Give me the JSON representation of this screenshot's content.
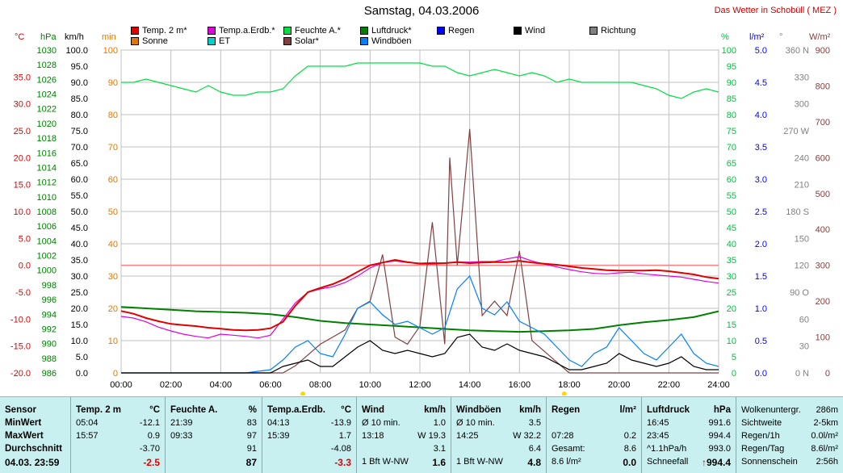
{
  "header": {
    "title": "Samstag, 04.03.2006",
    "brand": "Das Wetter in Schobüll ( MEZ )"
  },
  "legend": [
    {
      "label": "Temp. 2 m*",
      "color": "#e00000"
    },
    {
      "label": "Sonne",
      "color": "#e07800"
    },
    {
      "label": "Temp.a.Erdb.*",
      "color": "#e000e0"
    },
    {
      "label": "ET",
      "color": "#00d0d0"
    },
    {
      "label": "Feuchte A.*",
      "color": "#00e040"
    },
    {
      "label": "Solar*",
      "color": "#804040"
    },
    {
      "label": "Luftdruck*",
      "color": "#008000"
    },
    {
      "label": "Windböen",
      "color": "#0080ff"
    },
    {
      "label": "Regen",
      "color": "#0000ff"
    },
    {
      "label": "Wind",
      "color": "#000000"
    },
    {
      "label": "Richtung",
      "color": "#808080"
    }
  ],
  "axis_units": {
    "temp": "°C",
    "press": "hPa",
    "speed": "km/h",
    "min": "min",
    "pct": "%",
    "rain": "l/m²",
    "dir": "°",
    "solar": "W/m²"
  },
  "colors": {
    "temp": "#e00000",
    "press": "#008000",
    "speed": "#000000",
    "min": "#e07800",
    "pct": "#00c040",
    "rain": "#0000ff",
    "dir": "#808080",
    "solar": "#804040",
    "grid": "#c0c0c0",
    "refline": "#ff8080"
  },
  "chart_data": {
    "type": "line",
    "title": "Samstag, 04.03.2006",
    "x_ticks": [
      "00:00",
      "02:00",
      "04:00",
      "06:00",
      "08:00",
      "10:00",
      "12:00",
      "14:00",
      "16:00",
      "18:00",
      "20:00",
      "22:00",
      "24:00"
    ],
    "x_range_hours": [
      0,
      24
    ],
    "axes": {
      "temp_c": {
        "range": [
          -20,
          40
        ],
        "ticks": [
          "35.0",
          "30.0",
          "25.0",
          "20.0",
          "15.0",
          "10.0",
          "5.0",
          "0.0",
          "-5.0",
          "-10.0",
          "-15.0",
          "-20.0"
        ]
      },
      "pressure_hpa": {
        "range": [
          986,
          1030
        ],
        "ticks": [
          "1030",
          "1028",
          "1026",
          "1024",
          "1022",
          "1020",
          "1018",
          "1016",
          "1014",
          "1012",
          "1010",
          "1008",
          "1006",
          "1004",
          "1002",
          "1000",
          "998",
          "996",
          "994",
          "992",
          "990",
          "988",
          "986"
        ]
      },
      "speed_kmh": {
        "range": [
          0,
          100
        ],
        "ticks": [
          "100.0",
          "95.0",
          "90.0",
          "85.0",
          "80.0",
          "75.0",
          "70.0",
          "65.0",
          "60.0",
          "55.0",
          "50.0",
          "45.0",
          "40.0",
          "35.0",
          "30.0",
          "25.0",
          "20.0",
          "15.0",
          "10.0",
          "5.0",
          "0.0"
        ]
      },
      "minutes": {
        "range": [
          0,
          100
        ],
        "ticks": [
          "100",
          "90",
          "80",
          "70",
          "60",
          "50",
          "40",
          "30",
          "20",
          "10",
          "0"
        ]
      },
      "humidity_pct": {
        "range": [
          0,
          100
        ],
        "ticks": [
          "100",
          "95",
          "90",
          "85",
          "80",
          "75",
          "70",
          "65",
          "60",
          "55",
          "50",
          "45",
          "40",
          "35",
          "30",
          "25",
          "20",
          "15",
          "10",
          "5",
          "0"
        ]
      },
      "rain_lm2": {
        "range": [
          0,
          5
        ],
        "ticks": [
          "5.0",
          "4.5",
          "4.0",
          "3.5",
          "3.0",
          "2.5",
          "2.0",
          "1.5",
          "1.0",
          "0.5",
          "0.0"
        ]
      },
      "direction_deg": {
        "range": [
          0,
          360
        ],
        "ticks": [
          "360 N",
          "330",
          "300",
          "270 W",
          "240",
          "210",
          "180 S",
          "150",
          "120",
          "90 O",
          "60",
          "30",
          "0 N"
        ]
      },
      "solar_wm2": {
        "range": [
          0,
          900
        ],
        "ticks": [
          "900",
          "800",
          "700",
          "600",
          "500",
          "400",
          "300",
          "200",
          "100",
          "0"
        ]
      }
    },
    "series": [
      {
        "name": "Temp. 2 m*",
        "axis": "temp_c",
        "color": "#e00000",
        "x": [
          0,
          0.5,
          1,
          1.5,
          2,
          2.5,
          3,
          3.5,
          4,
          4.5,
          5,
          5.5,
          6,
          6.5,
          7,
          7.5,
          8,
          8.5,
          9,
          9.5,
          10,
          10.5,
          11,
          11.5,
          12,
          12.5,
          13,
          13.5,
          14,
          14.5,
          15,
          15.5,
          16,
          16.5,
          17,
          17.5,
          18,
          18.5,
          19,
          19.5,
          20,
          20.5,
          21,
          21.5,
          22,
          22.5,
          23,
          23.5,
          24
        ],
        "y": [
          -8.5,
          -9.0,
          -9.8,
          -10.4,
          -10.9,
          -11.1,
          -11.3,
          -11.6,
          -11.8,
          -12.0,
          -12.1,
          -12.0,
          -11.7,
          -10.5,
          -7.5,
          -5.0,
          -4.2,
          -3.5,
          -2.5,
          -1.2,
          0.0,
          0.5,
          1.0,
          0.6,
          0.3,
          0.3,
          0.4,
          0.6,
          0.4,
          0.5,
          0.6,
          0.6,
          0.8,
          0.5,
          0.3,
          0.1,
          -0.2,
          -0.5,
          -0.7,
          -0.9,
          -1.0,
          -1.0,
          -1.0,
          -0.9,
          -1.1,
          -1.4,
          -1.7,
          -2.2,
          -2.5
        ]
      },
      {
        "name": "Temp.a.Erdb.*",
        "axis": "temp_c",
        "color": "#e000e0",
        "x": [
          0,
          0.5,
          1,
          1.5,
          2,
          2.5,
          3,
          3.5,
          4,
          4.5,
          5,
          5.5,
          6,
          6.5,
          7,
          7.5,
          8,
          8.5,
          9,
          9.5,
          10,
          10.5,
          11,
          11.5,
          12,
          12.5,
          13,
          13.5,
          14,
          14.5,
          15,
          15.5,
          16,
          16.5,
          17,
          17.5,
          18,
          18.5,
          19,
          19.5,
          20,
          20.5,
          21,
          21.5,
          22,
          22.5,
          23,
          23.5,
          24
        ],
        "y": [
          -9.5,
          -9.8,
          -10.5,
          -11.5,
          -12.2,
          -12.8,
          -13.2,
          -13.5,
          -12.8,
          -13.0,
          -13.2,
          -13.5,
          -13.0,
          -10.0,
          -7.0,
          -5.0,
          -4.4,
          -4.0,
          -3.2,
          -2.0,
          -0.5,
          0.5,
          0.8,
          0.5,
          0.4,
          0.5,
          0.4,
          0.6,
          0.6,
          0.7,
          0.7,
          1.2,
          1.6,
          0.8,
          0.2,
          -0.3,
          -0.8,
          -1.2,
          -1.5,
          -1.6,
          -1.4,
          -1.3,
          -1.6,
          -1.8,
          -2.0,
          -2.2,
          -2.6,
          -3.0,
          -3.3
        ]
      },
      {
        "name": "Feuchte A.*",
        "axis": "humidity_pct",
        "color": "#00e040",
        "x": [
          0,
          0.5,
          1,
          1.5,
          2,
          2.5,
          3,
          3.5,
          4,
          4.5,
          5,
          5.5,
          6,
          6.5,
          7,
          7.5,
          8,
          8.5,
          9,
          9.5,
          10,
          10.5,
          11,
          11.5,
          12,
          12.5,
          13,
          13.5,
          14,
          14.5,
          15,
          15.5,
          16,
          16.5,
          17,
          17.5,
          18,
          18.5,
          19,
          19.5,
          20,
          20.5,
          21,
          21.5,
          22,
          22.5,
          23,
          23.5,
          24
        ],
        "y": [
          90,
          90,
          91,
          90,
          89,
          88,
          87,
          89,
          87,
          86,
          86,
          87,
          87,
          88,
          92,
          95,
          95,
          95,
          95,
          96,
          96,
          96,
          96,
          96,
          96,
          95,
          95,
          93,
          92,
          93,
          94,
          93,
          92,
          93,
          92,
          90,
          91,
          90,
          90,
          90,
          90,
          90,
          89,
          88,
          86,
          85,
          87,
          88,
          87
        ]
      },
      {
        "name": "Luftdruck*",
        "axis": "pressure_hpa",
        "color": "#008000",
        "x": [
          0,
          1,
          2,
          3,
          4,
          5,
          6,
          7,
          8,
          9,
          10,
          11,
          12,
          13,
          14,
          15,
          16,
          17,
          18,
          19,
          20,
          21,
          22,
          23,
          24
        ],
        "y": [
          995.0,
          994.8,
          994.6,
          994.4,
          994.3,
          994.2,
          994.0,
          993.6,
          993.1,
          992.8,
          992.6,
          992.4,
          992.2,
          992.0,
          991.8,
          991.7,
          991.6,
          991.7,
          991.8,
          992.0,
          992.5,
          992.9,
          993.2,
          993.6,
          994.4
        ]
      },
      {
        "name": "Windböen",
        "axis": "speed_kmh",
        "color": "#0080ff",
        "x": [
          0,
          1,
          2,
          3,
          4,
          5,
          6,
          6.5,
          7,
          7.5,
          8,
          8.5,
          9,
          9.5,
          10,
          10.5,
          11,
          11.5,
          12,
          12.5,
          13,
          13.5,
          14,
          14.5,
          15,
          15.5,
          16,
          16.5,
          17,
          17.5,
          18,
          18.5,
          19,
          19.5,
          20,
          20.5,
          21,
          21.5,
          22,
          22.5,
          23,
          23.5,
          24
        ],
        "y": [
          0,
          0,
          0,
          0,
          0,
          0,
          1,
          4,
          8,
          10,
          6,
          5,
          12,
          20,
          22,
          18,
          15,
          16,
          14,
          12,
          14,
          26,
          30,
          20,
          18,
          22,
          16,
          14,
          12,
          8,
          4,
          2,
          6,
          8,
          14,
          10,
          6,
          4,
          8,
          12,
          6,
          3,
          2
        ]
      },
      {
        "name": "Wind",
        "axis": "speed_kmh",
        "color": "#000000",
        "x": [
          0,
          1,
          2,
          3,
          4,
          5,
          6,
          6.5,
          7,
          7.5,
          8,
          8.5,
          9,
          9.5,
          10,
          10.5,
          11,
          11.5,
          12,
          12.5,
          13,
          13.5,
          14,
          14.5,
          15,
          15.5,
          16,
          16.5,
          17,
          17.5,
          18,
          18.5,
          19,
          19.5,
          20,
          20.5,
          21,
          21.5,
          22,
          22.5,
          23,
          23.5,
          24
        ],
        "y": [
          0,
          0,
          0,
          0,
          0,
          0,
          0,
          2,
          3,
          4,
          2,
          2,
          5,
          8,
          10,
          7,
          6,
          7,
          6,
          5,
          6,
          11,
          12,
          8,
          7,
          9,
          7,
          6,
          5,
          3,
          1,
          1,
          2,
          3,
          6,
          4,
          3,
          2,
          3,
          5,
          2,
          1,
          1
        ]
      },
      {
        "name": "Solar*",
        "axis": "solar_wm2",
        "color": "#804040",
        "x": [
          0,
          6.5,
          7,
          7.5,
          8,
          8.5,
          9,
          9.5,
          10,
          10.5,
          11,
          11.5,
          12,
          12.5,
          13,
          13.2,
          13.5,
          14,
          14.5,
          15,
          15.5,
          16,
          16.5,
          17,
          17.5,
          18,
          24
        ],
        "y": [
          0,
          0,
          20,
          50,
          80,
          100,
          120,
          180,
          200,
          330,
          100,
          80,
          130,
          420,
          80,
          600,
          300,
          680,
          160,
          200,
          160,
          340,
          90,
          60,
          30,
          0,
          0
        ]
      }
    ],
    "reference_lines": [
      {
        "axis": "temp_c",
        "value": 0.0
      }
    ],
    "grid": true
  },
  "table": {
    "sensor": {
      "header": "Sensor",
      "rows": [
        "MinWert",
        "MaxWert",
        "Durchschnitt"
      ],
      "date_time": "04.03.  23:59"
    },
    "temp2m": {
      "header": "Temp. 2 m",
      "unit": "°C",
      "min_time": "05:04",
      "min_val": "-12.1",
      "max_time": "15:57",
      "max_val": "0.9",
      "avg_val": "-3.70",
      "current": "-2.5"
    },
    "humidity": {
      "header": "Feuchte A.",
      "unit": "%",
      "min_time": "21:39",
      "min_val": "83",
      "max_time": "09:33",
      "max_val": "97",
      "avg_val": "91",
      "current": "87"
    },
    "ground": {
      "header": "Temp.a.Erdb.",
      "unit": "°C",
      "min_time": "04:13",
      "min_val": "-13.9",
      "max_time": "15:39",
      "max_val": "1.7",
      "avg_val": "-4.08",
      "current": "-3.3"
    },
    "wind": {
      "header": "Wind",
      "unit": "km/h",
      "r1_l": "Ø 10 min.",
      "r1_v": "1.0",
      "r2_l": "13:18",
      "r2_v": "W 19.3",
      "r3_v": "3.1",
      "r4_l": "1 Bft W-NW",
      "r4_v": "1.6"
    },
    "gust": {
      "header": "Windböen",
      "unit": "km/h",
      "r1_l": "Ø 10 min.",
      "r1_v": "3.5",
      "r2_l": "14:25",
      "r2_v": "W 32.2",
      "r3_v": "6.4",
      "r4_l": "1 Bft W-NW",
      "r4_v": "4.8"
    },
    "rain": {
      "header": "Regen",
      "unit": "l/m²",
      "r2_l": "07:28",
      "r2_v": "0.2",
      "r3_l": "Gesamt:",
      "r3_v": "8.6",
      "r4_l": "8.6 l/m²",
      "r4_v": "0.0"
    },
    "pressure": {
      "header": "Luftdruck",
      "unit": "hPa",
      "r1_l": "16:45",
      "r1_v": "991.6",
      "r2_l": "23:45",
      "r2_v": "994.4",
      "r3_l": "^1.1hPa/h",
      "r3_v": "993.0",
      "r4_l": "Schneefall",
      "r4_v": "994.4",
      "r4_arrow": "↑"
    },
    "misc": {
      "r1_l": "Wolkenuntergr.",
      "r1_v": "286m",
      "r2_l": "Sichtweite",
      "r2_v": "2-5km",
      "r3_l": "Regen/1h",
      "r3_v": "0.0l/m²",
      "r4_l": "Regen/Tag",
      "r4_v": "8.6l/m²",
      "r5_l": "Sonnenschein",
      "r5_v": "2:56h"
    }
  }
}
